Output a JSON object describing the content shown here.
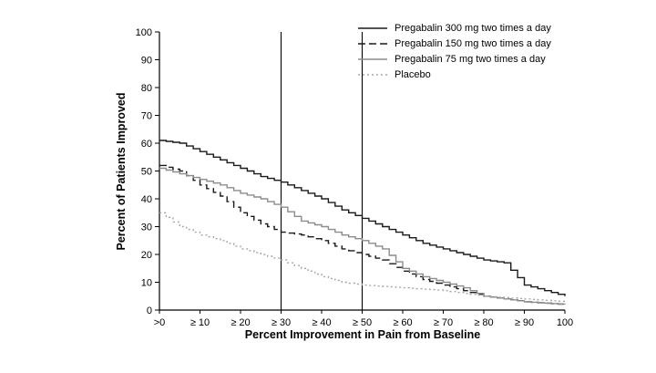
{
  "chart_data": {
    "type": "line",
    "title": "",
    "xlabel": "Percent Improvement in Pain from Baseline",
    "ylabel": "Percent of Patients Improved",
    "xlim": [
      0,
      100
    ],
    "ylim": [
      0,
      100
    ],
    "grid": false,
    "legend_position": "top-right",
    "x_ticks": [
      0,
      10,
      20,
      30,
      40,
      50,
      60,
      70,
      80,
      90,
      100
    ],
    "x_tick_labels": [
      ">0",
      "≥ 10",
      "≥ 20",
      "≥ 30",
      "≥ 40",
      "≥ 50",
      "≥ 60",
      "≥ 70",
      "≥ 80",
      "≥ 90",
      "100"
    ],
    "y_ticks": [
      0,
      10,
      20,
      30,
      40,
      50,
      60,
      70,
      80,
      90,
      100
    ],
    "y_tick_labels": [
      "0",
      "10",
      "20",
      "30",
      "40",
      "50",
      "60",
      "70",
      "80",
      "90",
      "100"
    ],
    "reference_lines_x": [
      30,
      50
    ],
    "x": [
      0,
      5,
      10,
      15,
      20,
      25,
      30,
      35,
      40,
      45,
      50,
      55,
      60,
      65,
      70,
      75,
      80,
      85,
      90,
      95,
      100
    ],
    "series": [
      {
        "name": "Pregabalin 300 mg two times a day",
        "color": "#1a1a1a",
        "dash": "",
        "values": [
          61,
          60,
          57,
          54,
          51,
          48,
          46,
          43,
          40,
          36,
          33,
          30,
          27,
          24,
          22,
          20,
          18,
          17,
          9,
          7,
          5
        ]
      },
      {
        "name": "Pregabalin 150 mg two times a day",
        "color": "#1a1a1a",
        "dash": "8,4",
        "values": [
          52,
          50,
          45,
          41,
          35,
          31,
          28,
          27,
          25,
          22,
          20,
          18,
          14,
          11,
          9,
          7,
          5,
          4,
          3,
          2.5,
          2
        ]
      },
      {
        "name": "Pregabalin 75 mg two times a day",
        "color": "#8c8c8c",
        "dash": "",
        "values": [
          51,
          49,
          47,
          45,
          42,
          40,
          37,
          32,
          30,
          27,
          25,
          22,
          15,
          12,
          10,
          8,
          5,
          4,
          3,
          2.5,
          2
        ]
      },
      {
        "name": "Placebo",
        "color": "#a6a6a6",
        "dash": "2,3",
        "values": [
          35,
          30,
          27,
          25,
          22,
          20,
          18,
          15,
          12,
          10,
          9,
          8.5,
          8,
          7.5,
          7,
          6,
          5,
          4.5,
          4,
          3.5,
          3
        ]
      }
    ]
  }
}
